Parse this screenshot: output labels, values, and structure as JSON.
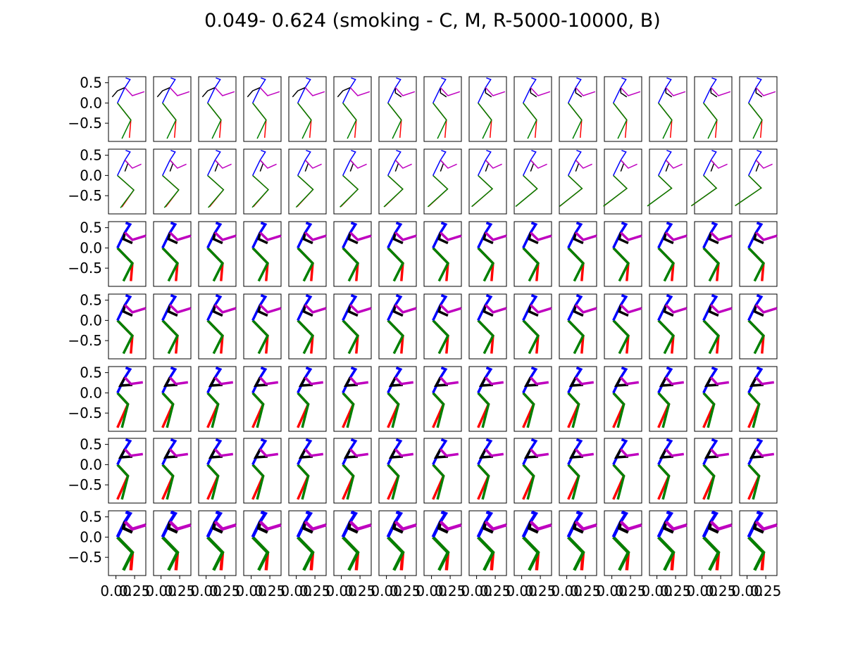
{
  "chart_data": {
    "type": "line",
    "title": "0.049- 0.624 (smoking - C, M, R-5000-10000, B)",
    "grid_rows": 7,
    "grid_cols": 15,
    "ylim": [
      -0.95,
      0.65
    ],
    "xlim": [
      -0.1,
      0.4
    ],
    "ytick_labels": [
      "0.5",
      "0.0",
      "−0.5"
    ],
    "yticks": [
      0.5,
      0.0,
      -0.5
    ],
    "xtick_labels": [
      "0.00",
      "0.25"
    ],
    "xticks": [
      0.0,
      0.25
    ],
    "grid": false,
    "limb_colors": {
      "right_leg": "#ff0000",
      "left_leg": "#008000",
      "spine": "#0000ff",
      "left_arm": "#000000",
      "right_arm": "#bf00bf"
    },
    "row_line_weight": [
      1.5,
      1.5,
      3.5,
      3.5,
      3.5,
      3.5,
      4.5
    ]
  }
}
